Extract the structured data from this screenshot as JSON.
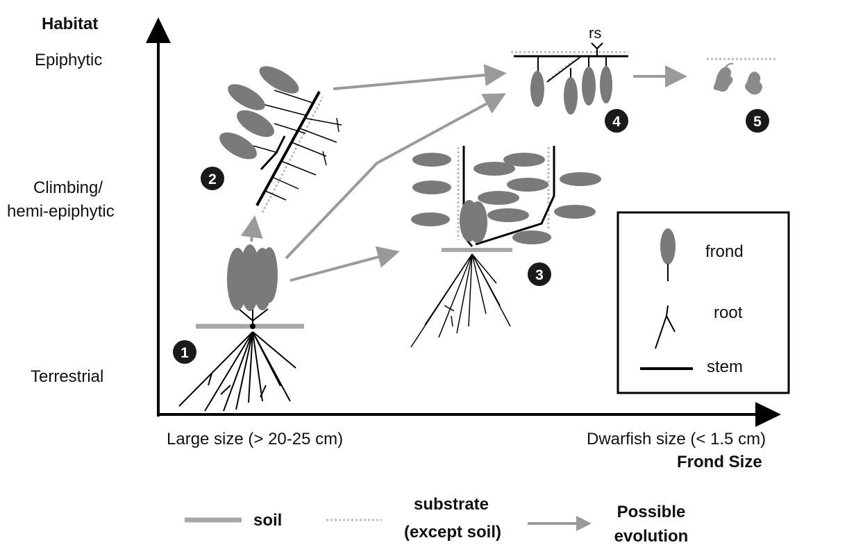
{
  "axes": {
    "y_title": "Habitat",
    "y_levels": [
      "Epiphytic",
      "Climbing/",
      "hemi-epiphytic",
      "Terrestrial"
    ],
    "x_left": "Large size (> 20-25 cm)",
    "x_right": "Dwarfish size (< 1.5 cm)",
    "x_title": "Frond Size"
  },
  "legend_box": {
    "frond": "frond",
    "root": "root",
    "stem": "stem",
    "rs": "rs"
  },
  "legend_bottom": {
    "soil": "soil",
    "substrate_1": "substrate",
    "substrate_2": "(except soil)",
    "evolution_1": "Possible",
    "evolution_2": "evolution"
  },
  "stages": [
    "1",
    "2",
    "3",
    "4",
    "5"
  ],
  "colors": {
    "frond": "#7a7a7a",
    "soil": "#a8a8a8",
    "arrow": "#9a9a9a",
    "stem": "#111111",
    "badge": "#1a1a1a"
  }
}
